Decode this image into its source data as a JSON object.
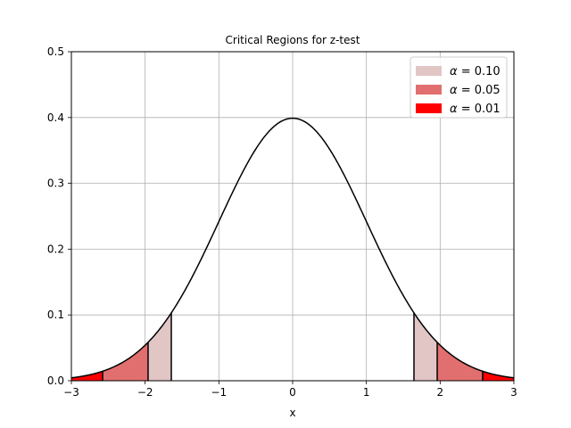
{
  "chart_data": {
    "type": "area",
    "title": "Critical Regions for z-test",
    "xlabel": "x",
    "ylabel": "",
    "xlim": [
      -3,
      3
    ],
    "ylim": [
      0,
      0.5
    ],
    "x_ticks": [
      -3,
      -2,
      -1,
      0,
      1,
      2,
      3
    ],
    "x_tick_labels": [
      "−3",
      "−2",
      "−1",
      "0",
      "1",
      "2",
      "3"
    ],
    "y_ticks": [
      0.0,
      0.1,
      0.2,
      0.3,
      0.4,
      0.5
    ],
    "y_tick_labels": [
      "0.0",
      "0.1",
      "0.2",
      "0.3",
      "0.4",
      "0.5"
    ],
    "grid": true,
    "legend_position": "top-right",
    "curve": {
      "distribution": "standard-normal-pdf",
      "color": "#000000"
    },
    "regions": [
      {
        "alpha_symbol": "α",
        "alpha_value": "0.10",
        "color": "#e2c5c5",
        "critical_value": 1.645
      },
      {
        "alpha_symbol": "α",
        "alpha_value": "0.05",
        "color": "#e26f6f",
        "critical_value": 1.96
      },
      {
        "alpha_symbol": "α",
        "alpha_value": "0.01",
        "color": "#ff0000",
        "critical_value": 2.576
      }
    ]
  }
}
